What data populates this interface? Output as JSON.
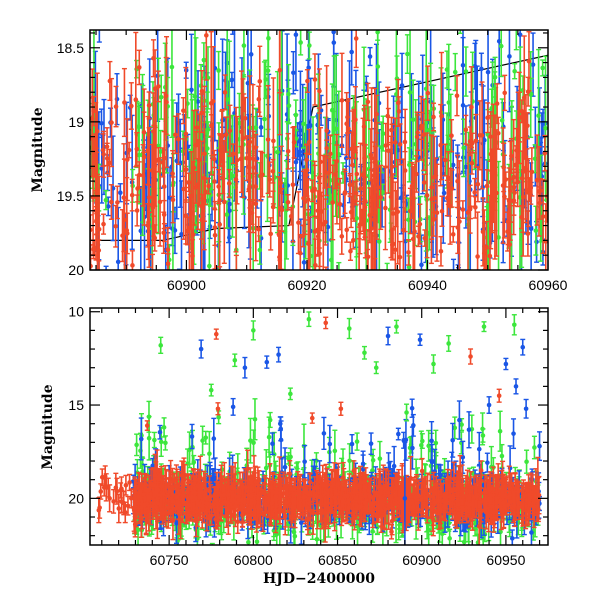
{
  "colors": {
    "blue": "#1a56e6",
    "green": "#3ce63c",
    "red": "#f04a2a",
    "axis": "#000000"
  },
  "chart_data": [
    {
      "type": "scatter",
      "panel": "top",
      "title": "",
      "xlabel": "",
      "ylabel": "Magnitude",
      "xlim": [
        60884,
        60960
      ],
      "ylim": [
        20.0,
        18.38
      ],
      "xticks": [
        60900,
        60920,
        60940,
        60960
      ],
      "xtick_labels": [
        "60900",
        "60920",
        "60940",
        "60960"
      ],
      "yticks": [
        18.5,
        19,
        19.5,
        20
      ],
      "ytick_labels": [
        "18.5",
        "19",
        "19.5",
        "20"
      ],
      "series": [
        {
          "name": "blue",
          "color": "#1a56e6",
          "count": 260,
          "mag_center": 19.3,
          "mag_spread": 0.6,
          "err": [
            0.05,
            0.6
          ]
        },
        {
          "name": "green",
          "color": "#3ce63c",
          "count": 220,
          "mag_center": 19.2,
          "mag_spread": 0.65,
          "err": [
            0.05,
            0.6
          ]
        },
        {
          "name": "red",
          "color": "#f04a2a",
          "count": 420,
          "mag_center": 19.4,
          "mag_spread": 0.55,
          "err": [
            0.05,
            0.5
          ]
        }
      ],
      "model_line": {
        "x": [
          60884,
          60896,
          60905,
          60917,
          60921,
          60960
        ],
        "y": [
          19.8,
          19.8,
          19.72,
          19.7,
          18.9,
          18.55
        ]
      }
    },
    {
      "type": "scatter",
      "panel": "bottom",
      "title": "",
      "xlabel": "HJD−2400000",
      "ylabel": "Magnitude",
      "xlim": [
        60703,
        60975
      ],
      "ylim": [
        22.5,
        9.8
      ],
      "xticks": [
        60750,
        60800,
        60850,
        60900,
        60950
      ],
      "xtick_labels": [
        "60750",
        "60800",
        "60850",
        "60900",
        "60950"
      ],
      "yticks": [
        10,
        15,
        20
      ],
      "ytick_labels": [
        "10",
        "15",
        "20"
      ],
      "series": [
        {
          "name": "blue",
          "color": "#1a56e6",
          "count": 380,
          "baseline": 20.0,
          "spread": 1.2
        },
        {
          "name": "green",
          "color": "#3ce63c",
          "count": 520,
          "baseline": 20.3,
          "spread": 1.4
        },
        {
          "name": "red",
          "color": "#f04a2a",
          "count": 900,
          "baseline": 20.0,
          "spread": 0.9
        }
      ],
      "outliers": [
        {
          "series": "red",
          "x": 60778,
          "y": 11.2
        },
        {
          "series": "red",
          "x": 60843,
          "y": 10.6
        },
        {
          "series": "red",
          "x": 60929,
          "y": 12.4
        },
        {
          "series": "red",
          "x": 60946,
          "y": 14.5
        },
        {
          "series": "red",
          "x": 60737,
          "y": 16.1
        },
        {
          "series": "red",
          "x": 60779,
          "y": 15.2
        },
        {
          "series": "red",
          "x": 60835,
          "y": 15.7
        },
        {
          "series": "red",
          "x": 60852,
          "y": 15.2
        },
        {
          "series": "blue",
          "x": 60769,
          "y": 12.0
        },
        {
          "series": "blue",
          "x": 60795,
          "y": 13.0
        },
        {
          "series": "blue",
          "x": 60808,
          "y": 12.7
        },
        {
          "series": "blue",
          "x": 60815,
          "y": 12.3
        },
        {
          "series": "blue",
          "x": 60816,
          "y": 16.0
        },
        {
          "series": "blue",
          "x": 60880,
          "y": 11.3
        },
        {
          "series": "blue",
          "x": 60899,
          "y": 11.5
        },
        {
          "series": "blue",
          "x": 60940,
          "y": 15.0
        },
        {
          "series": "blue",
          "x": 60950,
          "y": 12.8
        },
        {
          "series": "blue",
          "x": 60956,
          "y": 14.0
        },
        {
          "series": "blue",
          "x": 60960,
          "y": 11.9
        },
        {
          "series": "blue",
          "x": 60962,
          "y": 15.2
        },
        {
          "series": "blue",
          "x": 60788,
          "y": 15.1
        },
        {
          "series": "green",
          "x": 60745,
          "y": 11.8
        },
        {
          "series": "green",
          "x": 60775,
          "y": 14.2
        },
        {
          "series": "green",
          "x": 60789,
          "y": 12.6
        },
        {
          "series": "green",
          "x": 60800,
          "y": 11.0
        },
        {
          "series": "green",
          "x": 60822,
          "y": 14.4
        },
        {
          "series": "green",
          "x": 60833,
          "y": 10.4
        },
        {
          "series": "green",
          "x": 60857,
          "y": 10.9
        },
        {
          "series": "green",
          "x": 60866,
          "y": 12.2
        },
        {
          "series": "green",
          "x": 60873,
          "y": 13.0
        },
        {
          "series": "green",
          "x": 60885,
          "y": 10.8
        },
        {
          "series": "green",
          "x": 60907,
          "y": 12.8
        },
        {
          "series": "green",
          "x": 60916,
          "y": 11.7
        },
        {
          "series": "green",
          "x": 60937,
          "y": 10.8
        },
        {
          "series": "green",
          "x": 60955,
          "y": 10.7
        },
        {
          "series": "green",
          "x": 60747,
          "y": 16.2
        },
        {
          "series": "green",
          "x": 60810,
          "y": 15.8
        },
        {
          "series": "green",
          "x": 60891,
          "y": 15.4
        }
      ]
    }
  ]
}
